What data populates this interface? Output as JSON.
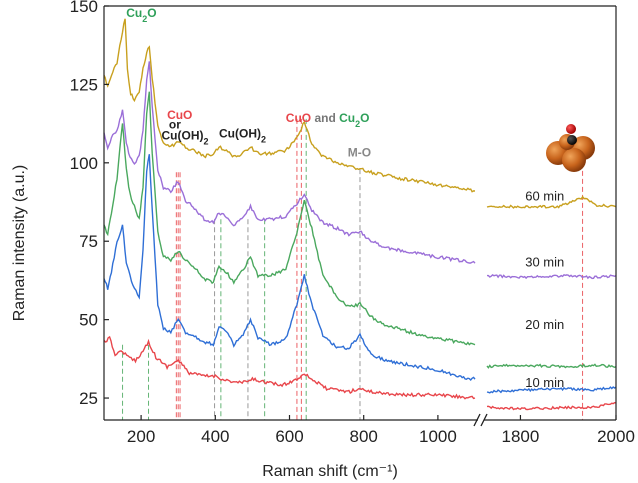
{
  "chart_data": {
    "type": "line",
    "title": "",
    "xlabel": "Raman shift (cm⁻¹)",
    "ylabel": "Raman intensity (a.u.)",
    "axis_break": true,
    "x_segments": [
      {
        "range": [
          100,
          1100
        ],
        "ticks": [
          200,
          400,
          600,
          800,
          1000
        ]
      },
      {
        "range": [
          1730,
          2000
        ],
        "ticks": [
          1800,
          2000
        ]
      }
    ],
    "ylim": [
      18,
      150
    ],
    "yticks": [
      25,
      50,
      75,
      100,
      125,
      150
    ],
    "grid": false,
    "series": [
      {
        "name": "10 min",
        "color": "#e8464b",
        "label_pos": [
          1810,
          28.5
        ],
        "points": [
          [
            100,
            43
          ],
          [
            115,
            44
          ],
          [
            130,
            39
          ],
          [
            150,
            40
          ],
          [
            165,
            38
          ],
          [
            185,
            37
          ],
          [
            205,
            40
          ],
          [
            220,
            43
          ],
          [
            240,
            38
          ],
          [
            270,
            35
          ],
          [
            300,
            37
          ],
          [
            330,
            33
          ],
          [
            370,
            32
          ],
          [
            400,
            32
          ],
          [
            420,
            31
          ],
          [
            450,
            30
          ],
          [
            480,
            30
          ],
          [
            500,
            31
          ],
          [
            540,
            30
          ],
          [
            580,
            29
          ],
          [
            620,
            31
          ],
          [
            640,
            33
          ],
          [
            660,
            31
          ],
          [
            700,
            28
          ],
          [
            760,
            27
          ],
          [
            790,
            28
          ],
          [
            820,
            27
          ],
          [
            900,
            26
          ],
          [
            1000,
            26
          ],
          [
            1100,
            25
          ]
        ],
        "points_right": [
          [
            1730,
            22
          ],
          [
            1800,
            21.5
          ],
          [
            1900,
            22
          ],
          [
            1950,
            22
          ],
          [
            2000,
            23.5
          ]
        ]
      },
      {
        "name": "20 min",
        "color": "#2f6fd6",
        "label_pos": [
          1810,
          47
        ],
        "points": [
          [
            100,
            63
          ],
          [
            110,
            60
          ],
          [
            120,
            65
          ],
          [
            135,
            75
          ],
          [
            150,
            80
          ],
          [
            160,
            68
          ],
          [
            170,
            64
          ],
          [
            182,
            60
          ],
          [
            195,
            57
          ],
          [
            205,
            72
          ],
          [
            215,
            97
          ],
          [
            222,
            103
          ],
          [
            230,
            85
          ],
          [
            245,
            55
          ],
          [
            260,
            47
          ],
          [
            280,
            46
          ],
          [
            300,
            50
          ],
          [
            320,
            46
          ],
          [
            340,
            45
          ],
          [
            370,
            43
          ],
          [
            395,
            42
          ],
          [
            410,
            48
          ],
          [
            430,
            46
          ],
          [
            450,
            42
          ],
          [
            475,
            45
          ],
          [
            495,
            50
          ],
          [
            515,
            44
          ],
          [
            550,
            42
          ],
          [
            590,
            44
          ],
          [
            620,
            55
          ],
          [
            640,
            64
          ],
          [
            660,
            55
          ],
          [
            690,
            45
          ],
          [
            730,
            41
          ],
          [
            760,
            41
          ],
          [
            790,
            45
          ],
          [
            820,
            39
          ],
          [
            860,
            37
          ],
          [
            900,
            36
          ],
          [
            950,
            35
          ],
          [
            1000,
            34
          ],
          [
            1050,
            32
          ],
          [
            1100,
            31
          ]
        ],
        "points_right": [
          [
            1730,
            27
          ],
          [
            1800,
            27.5
          ],
          [
            1900,
            28
          ],
          [
            1950,
            27.5
          ],
          [
            2000,
            28.5
          ]
        ]
      },
      {
        "name": "30 min",
        "color": "#4aa85e",
        "label_pos": [
          1810,
          67
        ],
        "points": [
          [
            100,
            80
          ],
          [
            110,
            77
          ],
          [
            120,
            84
          ],
          [
            135,
            95
          ],
          [
            150,
            113
          ],
          [
            160,
            98
          ],
          [
            170,
            90
          ],
          [
            182,
            86
          ],
          [
            195,
            82
          ],
          [
            205,
            92
          ],
          [
            215,
            116
          ],
          [
            222,
            123
          ],
          [
            230,
            103
          ],
          [
            245,
            78
          ],
          [
            260,
            70
          ],
          [
            280,
            69
          ],
          [
            300,
            72
          ],
          [
            320,
            69
          ],
          [
            340,
            67
          ],
          [
            370,
            63
          ],
          [
            395,
            62
          ],
          [
            410,
            67
          ],
          [
            430,
            65
          ],
          [
            450,
            62
          ],
          [
            475,
            66
          ],
          [
            495,
            70
          ],
          [
            515,
            64
          ],
          [
            550,
            64
          ],
          [
            590,
            66
          ],
          [
            620,
            78
          ],
          [
            640,
            88
          ],
          [
            660,
            79
          ],
          [
            690,
            64
          ],
          [
            730,
            57
          ],
          [
            760,
            54
          ],
          [
            790,
            55
          ],
          [
            820,
            51
          ],
          [
            860,
            48
          ],
          [
            900,
            47
          ],
          [
            950,
            45
          ],
          [
            1000,
            44
          ],
          [
            1050,
            43
          ],
          [
            1100,
            42
          ]
        ],
        "points_right": [
          [
            1730,
            35
          ],
          [
            1800,
            35.5
          ],
          [
            1900,
            35
          ],
          [
            1950,
            35.5
          ],
          [
            2000,
            35
          ]
        ]
      },
      {
        "name": "60 min",
        "color": "#9b6fd8",
        "label_pos": [
          1810,
          88
        ],
        "points": [
          [
            100,
            110
          ],
          [
            110,
            105
          ],
          [
            120,
            108
          ],
          [
            135,
            110
          ],
          [
            150,
            117
          ],
          [
            160,
            106
          ],
          [
            170,
            102
          ],
          [
            182,
            100
          ],
          [
            195,
            102
          ],
          [
            205,
            110
          ],
          [
            215,
            126
          ],
          [
            222,
            132
          ],
          [
            230,
            118
          ],
          [
            245,
            98
          ],
          [
            260,
            92
          ],
          [
            280,
            91
          ],
          [
            300,
            94
          ],
          [
            320,
            88
          ],
          [
            340,
            86
          ],
          [
            370,
            82
          ],
          [
            395,
            81
          ],
          [
            410,
            84
          ],
          [
            430,
            83
          ],
          [
            450,
            80
          ],
          [
            475,
            83
          ],
          [
            495,
            86
          ],
          [
            515,
            82
          ],
          [
            550,
            82
          ],
          [
            590,
            83
          ],
          [
            620,
            87
          ],
          [
            640,
            90
          ],
          [
            660,
            85
          ],
          [
            690,
            81
          ],
          [
            730,
            79
          ],
          [
            760,
            77
          ],
          [
            790,
            78
          ],
          [
            820,
            75
          ],
          [
            860,
            73
          ],
          [
            900,
            72
          ],
          [
            950,
            71
          ],
          [
            1000,
            70
          ],
          [
            1050,
            69
          ],
          [
            1100,
            68
          ]
        ],
        "points_right": [
          [
            1730,
            64
          ],
          [
            1800,
            63.5
          ],
          [
            1900,
            64
          ],
          [
            1950,
            63.5
          ],
          [
            2000,
            64
          ]
        ]
      },
      {
        "name": "",
        "color": "#c8a01e",
        "points": [
          [
            100,
            128
          ],
          [
            110,
            124
          ],
          [
            120,
            128
          ],
          [
            135,
            132
          ],
          [
            150,
            142
          ],
          [
            157,
            146
          ],
          [
            163,
            130
          ],
          [
            172,
            122
          ],
          [
            182,
            120
          ],
          [
            195,
            123
          ],
          [
            205,
            130
          ],
          [
            215,
            135
          ],
          [
            222,
            137
          ],
          [
            230,
            127
          ],
          [
            245,
            112
          ],
          [
            260,
            106
          ],
          [
            280,
            105
          ],
          [
            300,
            107
          ],
          [
            320,
            105
          ],
          [
            340,
            104
          ],
          [
            370,
            102
          ],
          [
            395,
            103
          ],
          [
            410,
            105
          ],
          [
            430,
            104
          ],
          [
            450,
            102
          ],
          [
            475,
            103
          ],
          [
            495,
            105
          ],
          [
            515,
            103
          ],
          [
            550,
            103
          ],
          [
            590,
            104
          ],
          [
            620,
            108
          ],
          [
            640,
            113
          ],
          [
            660,
            106
          ],
          [
            690,
            102
          ],
          [
            730,
            100
          ],
          [
            760,
            99
          ],
          [
            790,
            98
          ],
          [
            820,
            97
          ],
          [
            860,
            96
          ],
          [
            900,
            95
          ],
          [
            950,
            94
          ],
          [
            1000,
            93
          ],
          [
            1050,
            92
          ],
          [
            1100,
            91
          ]
        ],
        "points_right": [
          [
            1730,
            86
          ],
          [
            1800,
            86
          ],
          [
            1880,
            86
          ],
          [
            1930,
            89
          ],
          [
            1960,
            86.5
          ],
          [
            2000,
            86
          ]
        ]
      }
    ],
    "reference_lines": [
      {
        "x": 150,
        "color": "#4aa85e",
        "from": 42
      },
      {
        "x": 220,
        "color": "#4aa85e",
        "from": 42
      },
      {
        "x": 295,
        "color": "#e8464b",
        "from": 97
      },
      {
        "x": 300,
        "color": "#e8464b",
        "from": 97
      },
      {
        "x": 305,
        "color": "#e8464b",
        "from": 97
      },
      {
        "x": 398,
        "color": "#888888",
        "from": 82
      },
      {
        "x": 415,
        "color": "#4aa85e",
        "from": 82
      },
      {
        "x": 488,
        "color": "#888888",
        "from": 82
      },
      {
        "x": 533,
        "color": "#4aa85e",
        "from": 82
      },
      {
        "x": 620,
        "color": "#e8464b",
        "from": 114
      },
      {
        "x": 632,
        "color": "#e8464b",
        "from": 114
      },
      {
        "x": 645,
        "color": "#4aa85e",
        "from": 114
      },
      {
        "x": 790,
        "color": "#888888",
        "from": 98
      },
      {
        "x": 1930,
        "color": "#e8464b",
        "from": 100
      }
    ],
    "annotations": [
      {
        "x": 160,
        "y": 146.5,
        "segments": [
          {
            "text": "Cu",
            "color": "#2fa05a"
          },
          {
            "text": "2",
            "color": "#2fa05a",
            "sub": true
          },
          {
            "text": "O",
            "color": "#2fa05a"
          }
        ]
      },
      {
        "x": 270,
        "y": 114,
        "segments": [
          {
            "text": "CuO",
            "color": "#e8464b"
          }
        ]
      },
      {
        "x": 275,
        "y": 111,
        "segments": [
          {
            "text": "or",
            "color": "#222222"
          }
        ]
      },
      {
        "x": 255,
        "y": 107.5,
        "segments": [
          {
            "text": "Cu(OH)",
            "color": "#222222"
          },
          {
            "text": "2",
            "color": "#222222",
            "sub": true
          }
        ]
      },
      {
        "x": 410,
        "y": 108,
        "segments": [
          {
            "text": "Cu(OH)",
            "color": "#222222"
          },
          {
            "text": "2",
            "color": "#222222",
            "sub": true
          }
        ]
      },
      {
        "x": 590,
        "y": 113,
        "segments": [
          {
            "text": "CuO",
            "color": "#e8464b"
          },
          {
            "text": " and ",
            "color": "#777777"
          },
          {
            "text": "Cu",
            "color": "#2fa05a"
          },
          {
            "text": "2",
            "color": "#2fa05a",
            "sub": true
          },
          {
            "text": "O",
            "color": "#2fa05a"
          }
        ]
      },
      {
        "x": 757,
        "y": 102,
        "segments": [
          {
            "text": "M-O",
            "color": "#888888"
          }
        ]
      }
    ],
    "axis_title_font_px": 16,
    "axis_font_px": 17,
    "time_label_font_px": 13,
    "annotation_font_px": 12
  }
}
